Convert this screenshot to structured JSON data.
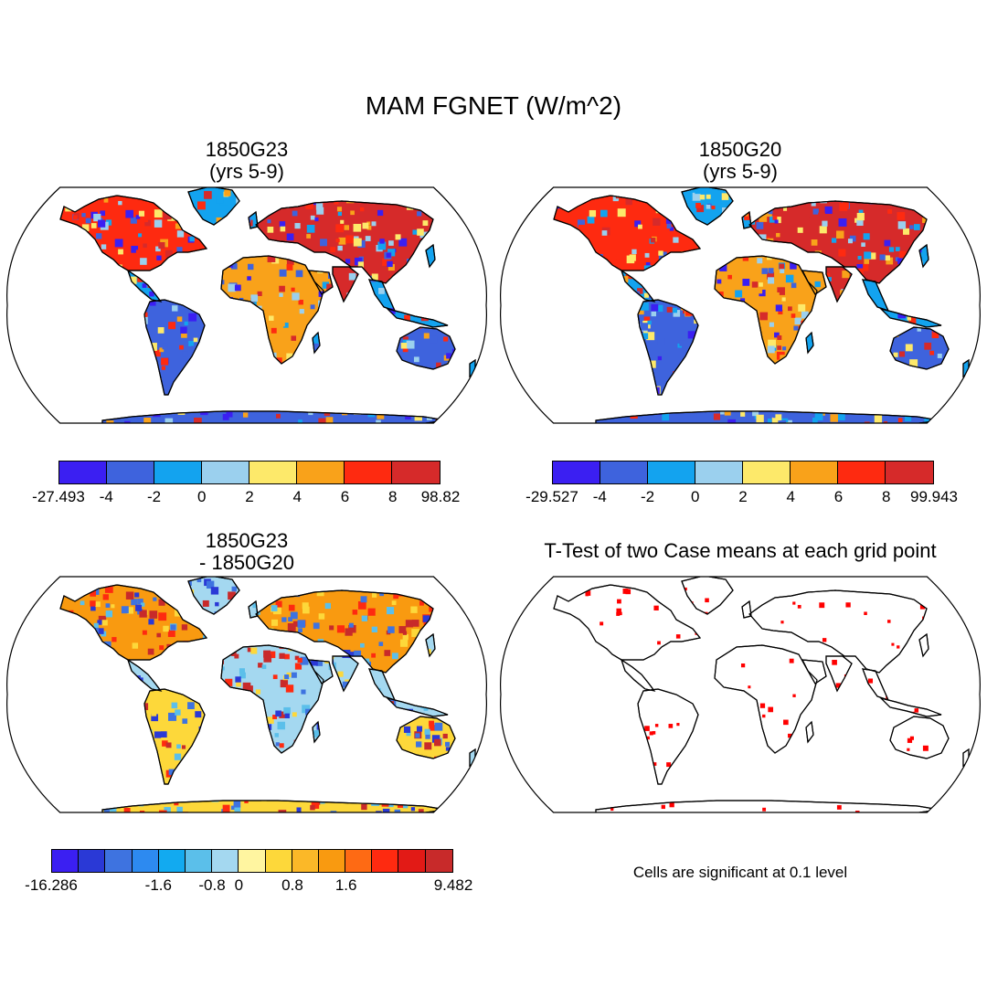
{
  "title": "MAM FGNET (W/m^2)",
  "panels": {
    "p1": {
      "title_line1": "1850G23",
      "title_line2": "(yrs 5-9)",
      "colorbar": {
        "colors": [
          "#3b1ff2",
          "#3e63dd",
          "#13a3ef",
          "#9bd0ee",
          "#fde96a",
          "#f9a21a",
          "#fe2a10",
          "#d62a2a"
        ],
        "labels": [
          "-27.493",
          "-4",
          "-2",
          "0",
          "2",
          "4",
          "6",
          "8",
          "98.82"
        ]
      }
    },
    "p2": {
      "title_line1": "1850G20",
      "title_line2": "(yrs 5-9)",
      "colorbar": {
        "colors": [
          "#3b1ff2",
          "#3e63dd",
          "#13a3ef",
          "#9bd0ee",
          "#fde96a",
          "#f9a21a",
          "#fe2a10",
          "#d62a2a"
        ],
        "labels": [
          "-29.527",
          "-4",
          "-2",
          "0",
          "2",
          "4",
          "6",
          "8",
          "99.943"
        ]
      }
    },
    "p3": {
      "title_line1": "1850G23",
      "title_line2": "- 1850G20",
      "colorbar": {
        "colors": [
          "#3b1ff2",
          "#2a39d6",
          "#3e73e0",
          "#2d8af0",
          "#12aaf0",
          "#5bbfea",
          "#a4d8f0",
          "#fff5a0",
          "#fdd83a",
          "#fbb828",
          "#f99a10",
          "#fe6a14",
          "#fe2a10",
          "#e21a16",
          "#c82a2a"
        ],
        "labels": [
          "-16.286",
          "-1.6",
          "-0.8",
          "0",
          "0.8",
          "1.6",
          "9.482"
        ]
      }
    },
    "p4": {
      "title": "T-Test of two Case means at each grid point",
      "note": "Cells are significant at 0.1 level",
      "significance_color": "#ff0000"
    }
  }
}
